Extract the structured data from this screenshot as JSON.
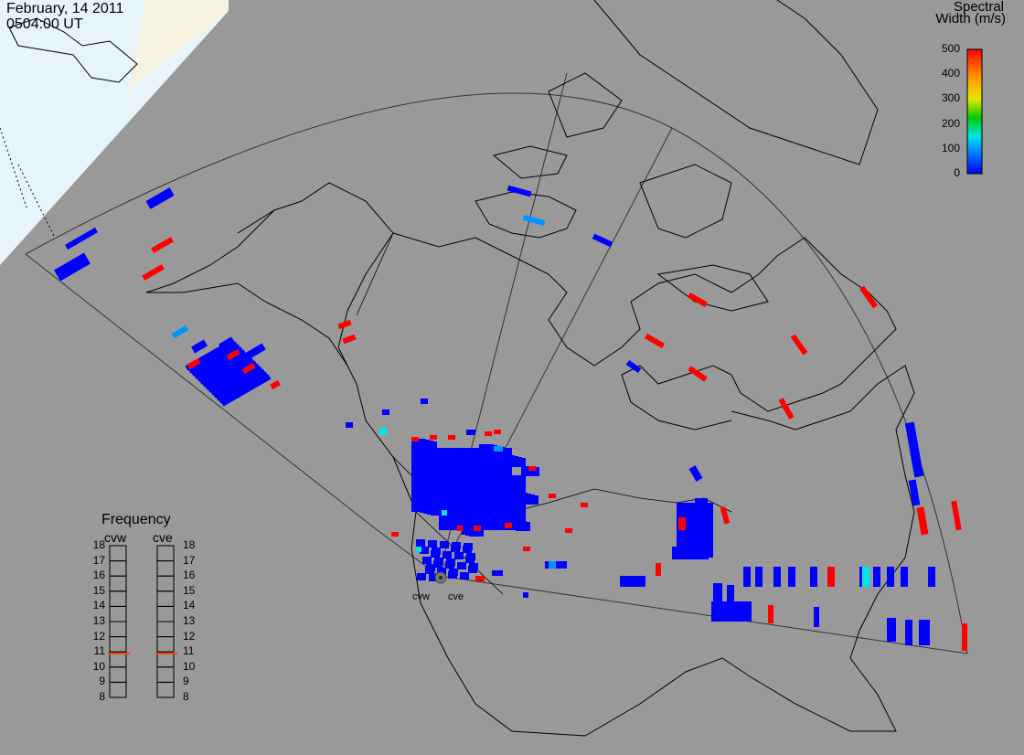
{
  "header": {
    "date": "February, 14 2011",
    "time": "0504:00 UT"
  },
  "colorbar": {
    "title_line1": "Spectral",
    "title_line2": "Width (m/s)",
    "ticks": [
      "0",
      "100",
      "200",
      "300",
      "400",
      "500"
    ],
    "range": [
      0,
      500
    ],
    "colors": [
      "#0000ff",
      "#0096ff",
      "#00e6e6",
      "#00cc00",
      "#e6e600",
      "#ff9600",
      "#ff0000"
    ]
  },
  "frequency_panel": {
    "title": "Frequency",
    "columns": [
      {
        "name": "cvw",
        "value_mhz": 10.9
      },
      {
        "name": "cve",
        "value_mhz": 10.9
      }
    ],
    "ticks": [
      "18",
      "17",
      "16",
      "15",
      "14",
      "13",
      "12",
      "11",
      "10",
      "9",
      "8"
    ],
    "range": [
      8,
      18
    ],
    "marker_color": "#ff4000"
  },
  "radars": {
    "west": "cvw",
    "east": "cve"
  },
  "colors": {
    "ocean": "#999999",
    "daylight": "#e8f4fb",
    "daylight_edge": "#f5f3e0",
    "coast": "#000000",
    "fov": "#333333"
  }
}
